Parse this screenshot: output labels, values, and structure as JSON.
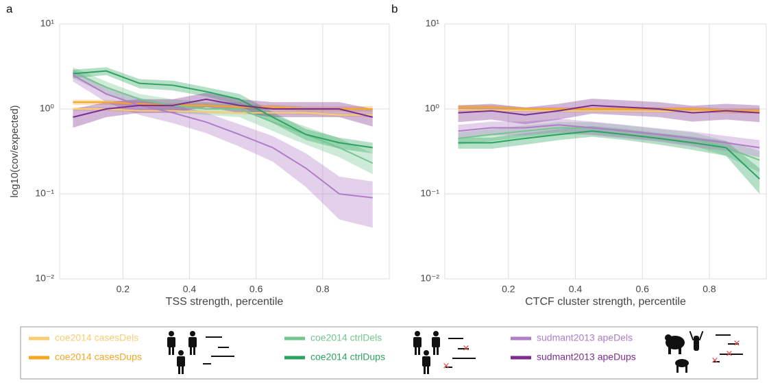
{
  "chart_data": [
    {
      "type": "line",
      "panel": "a",
      "xlabel": "TSS strength, percentile",
      "ylabel": "log10(cov/expected)",
      "log_y": true,
      "grid": true,
      "xlim": [
        0.01,
        1.0
      ],
      "ylim": [
        0.01,
        10
      ],
      "xticks": [
        0.2,
        0.4,
        0.6,
        0.8
      ],
      "yticks": [
        {
          "value": 0.01,
          "label": "10⁻²"
        },
        {
          "value": 0.1,
          "label": "10⁻¹"
        },
        {
          "value": 1,
          "label": "10⁰"
        },
        {
          "value": 10,
          "label": "10¹"
        }
      ],
      "x": [
        0.05,
        0.15,
        0.25,
        0.35,
        0.45,
        0.55,
        0.65,
        0.75,
        0.85,
        0.95
      ],
      "series": [
        {
          "name": "coe2014 casesDels",
          "color": "#f8cd73",
          "values": [
            1.0,
            1.0,
            0.95,
            0.95,
            0.92,
            0.9,
            0.9,
            0.9,
            0.85,
            0.85
          ],
          "lower": [
            0.95,
            0.95,
            0.9,
            0.9,
            0.88,
            0.86,
            0.86,
            0.85,
            0.8,
            0.8
          ],
          "upper": [
            1.05,
            1.05,
            1.0,
            1.0,
            0.97,
            0.95,
            0.95,
            0.95,
            0.9,
            0.9
          ]
        },
        {
          "name": "coe2014 casesDups",
          "color": "#f5a623",
          "values": [
            1.2,
            1.2,
            1.15,
            1.1,
            1.1,
            1.05,
            1.05,
            1.0,
            1.0,
            1.0
          ],
          "lower": [
            1.12,
            1.12,
            1.08,
            1.04,
            1.03,
            0.99,
            0.98,
            0.94,
            0.93,
            0.92
          ],
          "upper": [
            1.28,
            1.28,
            1.22,
            1.17,
            1.17,
            1.11,
            1.12,
            1.07,
            1.07,
            1.08
          ]
        },
        {
          "name": "coe2014 ctrlDels",
          "color": "#74c58f",
          "values": [
            2.7,
            1.8,
            1.3,
            1.1,
            1.0,
            1.0,
            0.7,
            0.5,
            0.35,
            0.23
          ],
          "lower": [
            2.3,
            1.5,
            1.1,
            0.9,
            0.85,
            0.8,
            0.55,
            0.38,
            0.27,
            0.17
          ],
          "upper": [
            3.1,
            2.1,
            1.5,
            1.3,
            1.2,
            1.2,
            0.85,
            0.62,
            0.45,
            0.3
          ]
        },
        {
          "name": "coe2014 ctrlDups",
          "color": "#2ca25f",
          "values": [
            2.6,
            2.8,
            2.0,
            1.9,
            1.6,
            1.3,
            0.8,
            0.5,
            0.4,
            0.35
          ],
          "lower": [
            2.3,
            2.5,
            1.75,
            1.65,
            1.4,
            1.1,
            0.68,
            0.43,
            0.34,
            0.3
          ],
          "upper": [
            2.9,
            3.1,
            2.25,
            2.15,
            1.8,
            1.5,
            0.92,
            0.58,
            0.46,
            0.4
          ]
        },
        {
          "name": "sudmant2013 apeDels",
          "color": "#b07cc6",
          "values": [
            2.5,
            1.5,
            1.1,
            0.9,
            0.7,
            0.5,
            0.35,
            0.2,
            0.1,
            0.09
          ],
          "lower": [
            2.1,
            1.2,
            0.85,
            0.68,
            0.52,
            0.36,
            0.24,
            0.12,
            0.05,
            0.04
          ],
          "upper": [
            2.9,
            1.8,
            1.35,
            1.12,
            0.9,
            0.66,
            0.48,
            0.3,
            0.16,
            0.14
          ]
        },
        {
          "name": "sudmant2013 apeDups",
          "color": "#7b2d8e",
          "values": [
            0.8,
            1.0,
            1.1,
            1.1,
            1.3,
            1.1,
            1.0,
            1.0,
            1.0,
            0.8
          ],
          "lower": [
            0.6,
            0.8,
            0.9,
            0.9,
            1.05,
            0.9,
            0.8,
            0.8,
            0.8,
            0.62
          ],
          "upper": [
            1.0,
            1.2,
            1.3,
            1.3,
            1.55,
            1.3,
            1.2,
            1.2,
            1.2,
            1.0
          ]
        }
      ]
    },
    {
      "type": "line",
      "panel": "b",
      "xlabel": "CTCF cluster strength, percentile",
      "log_y": true,
      "grid": true,
      "xlim": [
        0.01,
        0.97
      ],
      "ylim": [
        0.01,
        10
      ],
      "xticks": [
        0.2,
        0.4,
        0.6,
        0.8
      ],
      "yticks": [
        {
          "value": 0.01,
          "label": "10⁻²"
        },
        {
          "value": 0.1,
          "label": "10⁻¹"
        },
        {
          "value": 1,
          "label": "10⁰"
        },
        {
          "value": 10,
          "label": "10¹"
        }
      ],
      "x": [
        0.05,
        0.15,
        0.25,
        0.35,
        0.45,
        0.55,
        0.65,
        0.75,
        0.85,
        0.95
      ],
      "series": [
        {
          "name": "coe2014 casesDels",
          "color": "#f8cd73",
          "values": [
            0.98,
            0.97,
            0.96,
            0.95,
            0.95,
            0.95,
            0.94,
            0.94,
            0.93,
            0.93
          ],
          "lower": [
            0.94,
            0.93,
            0.92,
            0.91,
            0.91,
            0.91,
            0.9,
            0.9,
            0.89,
            0.89
          ],
          "upper": [
            1.02,
            1.01,
            1.0,
            0.99,
            0.99,
            0.99,
            0.98,
            0.98,
            0.97,
            0.97
          ]
        },
        {
          "name": "coe2014 casesDups",
          "color": "#f5a623",
          "values": [
            1.05,
            1.05,
            1.0,
            1.0,
            1.0,
            1.0,
            1.0,
            1.0,
            0.95,
            0.95
          ],
          "lower": [
            0.99,
            0.99,
            0.95,
            0.95,
            0.95,
            0.95,
            0.95,
            0.94,
            0.89,
            0.88
          ],
          "upper": [
            1.11,
            1.11,
            1.05,
            1.05,
            1.05,
            1.05,
            1.05,
            1.06,
            1.01,
            1.02
          ]
        },
        {
          "name": "coe2014 ctrlDels",
          "color": "#74c58f",
          "values": [
            0.45,
            0.5,
            0.55,
            0.6,
            0.6,
            0.55,
            0.5,
            0.45,
            0.35,
            0.25
          ],
          "lower": [
            0.38,
            0.42,
            0.47,
            0.5,
            0.5,
            0.46,
            0.42,
            0.37,
            0.28,
            0.18
          ],
          "upper": [
            0.53,
            0.58,
            0.64,
            0.7,
            0.7,
            0.64,
            0.58,
            0.53,
            0.42,
            0.32
          ]
        },
        {
          "name": "coe2014 ctrlDups",
          "color": "#2ca25f",
          "values": [
            0.4,
            0.4,
            0.45,
            0.5,
            0.55,
            0.5,
            0.45,
            0.4,
            0.35,
            0.15
          ],
          "lower": [
            0.34,
            0.34,
            0.38,
            0.43,
            0.47,
            0.43,
            0.38,
            0.33,
            0.28,
            0.1
          ],
          "upper": [
            0.46,
            0.46,
            0.52,
            0.58,
            0.63,
            0.58,
            0.52,
            0.47,
            0.42,
            0.2
          ]
        },
        {
          "name": "sudmant2013 apeDels",
          "color": "#b07cc6",
          "values": [
            0.55,
            0.6,
            0.6,
            0.65,
            0.6,
            0.55,
            0.5,
            0.45,
            0.4,
            0.35
          ],
          "lower": [
            0.45,
            0.49,
            0.49,
            0.53,
            0.49,
            0.45,
            0.41,
            0.36,
            0.32,
            0.27
          ],
          "upper": [
            0.65,
            0.71,
            0.71,
            0.77,
            0.71,
            0.65,
            0.59,
            0.54,
            0.48,
            0.43
          ]
        },
        {
          "name": "sudmant2013 apeDups",
          "color": "#7b2d8e",
          "values": [
            0.9,
            0.95,
            0.85,
            0.95,
            1.1,
            1.05,
            1.0,
            0.9,
            0.95,
            0.9
          ],
          "lower": [
            0.7,
            0.75,
            0.66,
            0.75,
            0.88,
            0.84,
            0.8,
            0.71,
            0.75,
            0.7
          ],
          "upper": [
            1.1,
            1.15,
            1.04,
            1.15,
            1.32,
            1.26,
            1.2,
            1.09,
            1.15,
            1.1
          ]
        }
      ]
    }
  ]
}
